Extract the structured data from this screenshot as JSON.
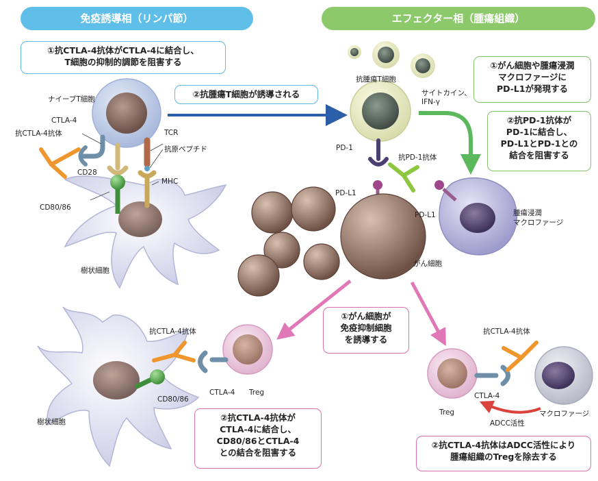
{
  "headers": {
    "left": "免疫誘導相（リンパ節）",
    "right": "エフェクター相（腫瘍組織）"
  },
  "colors": {
    "left_header": "#5fbfe8",
    "right_header": "#8cc96b",
    "arrow_blue": "#2a5ea8",
    "arrow_green": "#5cb85c",
    "arrow_pink": "#e078b8",
    "arrow_red": "#d9433b",
    "antibody": "#f0962e",
    "pd1_antibody": "#8dc63f"
  },
  "boxes": {
    "box1": "①抗CTLA-4抗体がCTLA-4に結合し、\nT細胞の抑制的調節を阻害する",
    "box2": "②抗腫瘍T細胞が誘導される",
    "box3": "①がん細胞や腫瘍浸潤\nマクロファージに\nPD-L1が発現する",
    "box4": "②抗PD-1抗体が\nPD-1に結合し、\nPD-L1とPD-1との\n結合を阻害する",
    "box5": "①がん細胞が\n免疫抑制細胞\nを誘導する",
    "box6": "②抗CTLA-4抗体が\nCTLA-4に結合し、\nCD80/86とCTLA-4\nとの結合を阻害する",
    "box7": "②抗CTLA-4抗体はADCC活性により\n腫瘍組織のTregを除去する"
  },
  "labels": {
    "naive_t": "ナイーブT細胞",
    "ctla4": "CTLA-4",
    "anti_ctla4": "抗CTLA-4抗体",
    "cd28": "CD28",
    "tcr": "TCR",
    "antigen_peptide": "抗原ペプチド",
    "mhc": "MHC",
    "cd80_86": "CD80/86",
    "dendritic": "樹状細胞",
    "anti_tumor_t": "抗腫瘍T細胞",
    "cytokine": "サイトカイン、",
    "ifn": "IFN-γ",
    "pd1": "PD-1",
    "anti_pd1": "抗PD-1抗体",
    "pdl1_a": "PD-L1",
    "pdl1_b": "PD-L1",
    "tam1": "腫瘍浸潤",
    "tam2": "マクロファージ",
    "cancer_cell": "がん細胞",
    "anti_ctla4_bl": "抗CTLA-4抗体",
    "ctla4_bl": "CTLA-4",
    "treg_bl": "Treg",
    "cd80_86_bl": "CD80/86",
    "dendritic_bl": "樹状細胞",
    "anti_ctla4_br": "抗CTLA-4抗体",
    "ctla4_br": "CTLA-4",
    "treg_br": "Treg",
    "adcc": "ADCC活性",
    "macrophage_br": "マクロファージ"
  }
}
